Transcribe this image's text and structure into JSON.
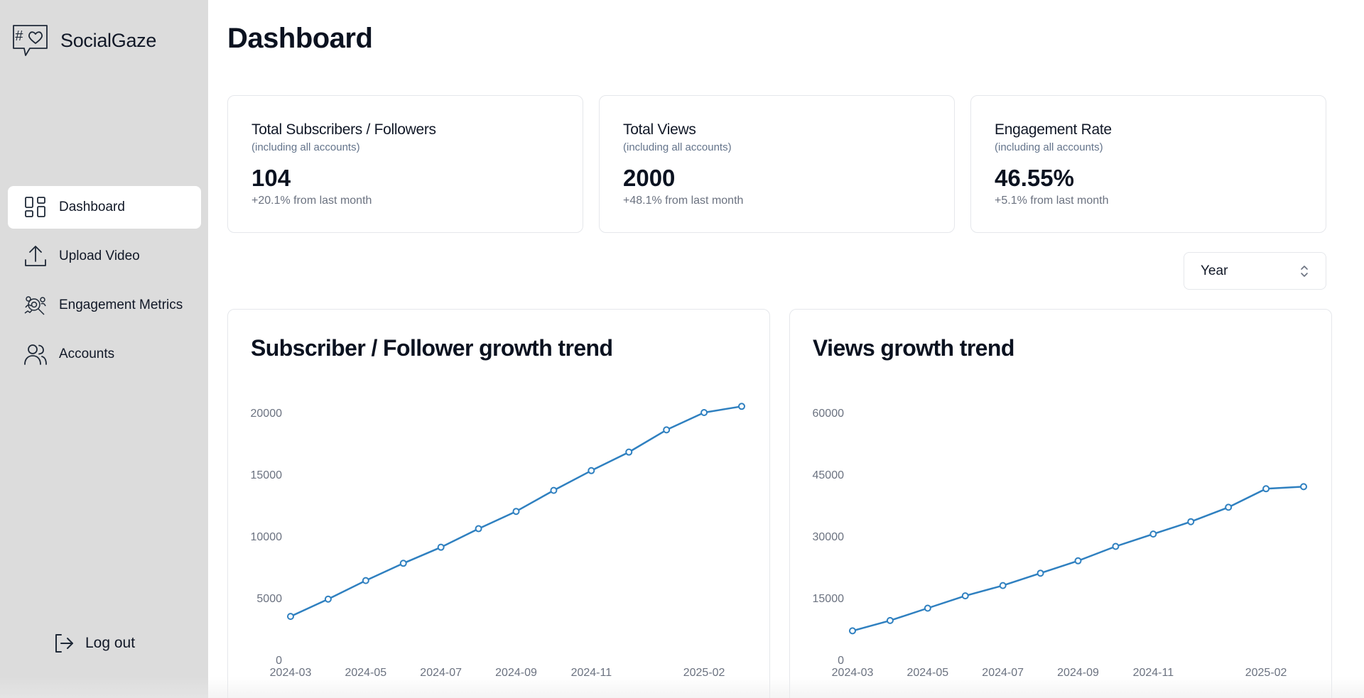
{
  "brand": {
    "name": "SocialGaze",
    "logo_icon": "hashtag-heart-chat-icon"
  },
  "sidebar": {
    "items": [
      {
        "label": "Dashboard",
        "icon": "dashboard-grid-icon",
        "active": true
      },
      {
        "label": "Upload Video",
        "icon": "upload-icon",
        "active": false
      },
      {
        "label": "Engagement Metrics",
        "icon": "engagement-metrics-icon",
        "active": false
      },
      {
        "label": "Accounts",
        "icon": "users-icon",
        "active": false
      }
    ],
    "logout_label": "Log out"
  },
  "page": {
    "title": "Dashboard"
  },
  "stats": [
    {
      "title": "Total Subscribers / Followers",
      "subtitle": "(including all accounts)",
      "value": "104",
      "change": "+20.1% from last month"
    },
    {
      "title": "Total Views",
      "subtitle": "(including all accounts)",
      "value": "2000",
      "change": "+48.1% from last month"
    },
    {
      "title": "Engagement Rate",
      "subtitle": "(including all accounts)",
      "value": "46.55%",
      "change": "+5.1% from last month"
    }
  ],
  "period_select": {
    "value": "Year"
  },
  "colors": {
    "line": "#2f80c0",
    "sidebar_bg": "#dcdcdc",
    "axis_text": "#6b7280"
  },
  "chart_data": [
    {
      "type": "line",
      "title": "Subscriber / Follower growth trend",
      "x": [
        "2024-03",
        "2024-04",
        "2024-05",
        "2024-06",
        "2024-07",
        "2024-08",
        "2024-09",
        "2024-10",
        "2024-11",
        "2024-12",
        "2025-01",
        "2025-02",
        "2025-03"
      ],
      "x_tick_labels": [
        "2024-03",
        "2024-05",
        "2024-07",
        "2024-09",
        "2024-11",
        "2025-02"
      ],
      "y_ticks": [
        "0",
        "5000",
        "10000",
        "15000",
        "20000"
      ],
      "ylim": [
        0,
        20000
      ],
      "series": [
        {
          "values": [
            3500,
            4900,
            6400,
            7800,
            9100,
            10600,
            12000,
            13700,
            15300,
            16800,
            18600,
            20000,
            20500
          ]
        }
      ]
    },
    {
      "type": "line",
      "title": "Views growth trend",
      "x": [
        "2024-03",
        "2024-04",
        "2024-05",
        "2024-06",
        "2024-07",
        "2024-08",
        "2024-09",
        "2024-10",
        "2024-11",
        "2024-12",
        "2025-01",
        "2025-02",
        "2025-03"
      ],
      "x_tick_labels": [
        "2024-03",
        "2024-05",
        "2024-07",
        "2024-09",
        "2024-11",
        "2025-02"
      ],
      "y_ticks": [
        "0",
        "15000",
        "30000",
        "45000",
        "60000"
      ],
      "ylim": [
        0,
        60000
      ],
      "series": [
        {
          "values": [
            7000,
            9500,
            12500,
            15500,
            18000,
            21000,
            24000,
            27500,
            30500,
            33500,
            37000,
            41500,
            42000
          ]
        }
      ]
    }
  ]
}
